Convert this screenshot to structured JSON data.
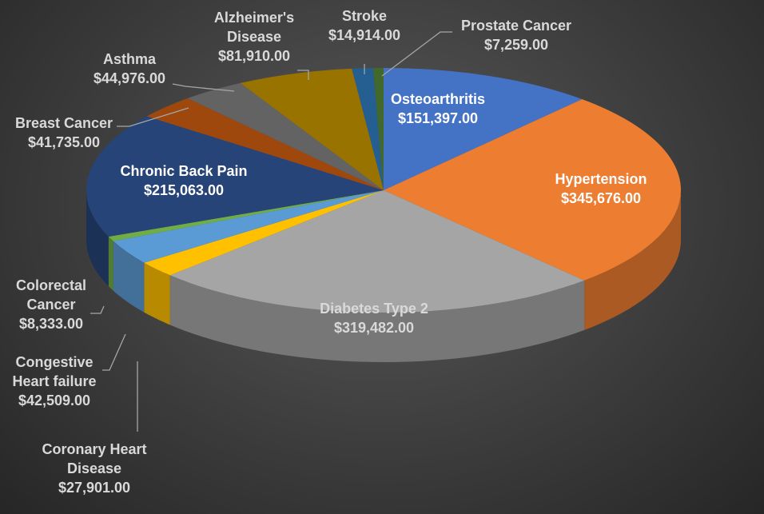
{
  "chart_data": {
    "type": "pie",
    "title": "",
    "categories": [
      "Osteoarthritis",
      "Hypertension",
      "Diabetes Type 2",
      "Coronary Heart Disease",
      "Congestive Heart failure",
      "Colorectal Cancer",
      "Chronic Back Pain",
      "Breast Cancer",
      "Asthma",
      "Alzheimer's Disease",
      "Stroke",
      "Prostate Cancer"
    ],
    "values": [
      151397,
      345676,
      319482,
      27901,
      42509,
      8333,
      215063,
      41735,
      44976,
      81910,
      14914,
      7259
    ],
    "value_labels": [
      "$151,397.00",
      "$345,676.00",
      "$319,482.00",
      "$27,901.00",
      "$42,509.00",
      "$8,333.00",
      "$215,063.00",
      "$41,735.00",
      "$44,976.00",
      "$81,910.00",
      "$14,914.00",
      "$7,259.00"
    ],
    "colors": [
      "#4472C4",
      "#ED7D31",
      "#A5A5A5",
      "#FFC000",
      "#5B9BD5",
      "#70AD47",
      "#264478",
      "#9E480E",
      "#636363",
      "#997300",
      "#255E91",
      "#43682B"
    ],
    "label_lines": [
      [
        "Osteoarthritis"
      ],
      [
        "Hypertension"
      ],
      [
        "Diabetes Type 2"
      ],
      [
        "Coronary Heart",
        "Disease"
      ],
      [
        "Congestive",
        "Heart failure"
      ],
      [
        "Colorectal",
        "Cancer"
      ],
      [
        "Chronic Back Pain"
      ],
      [
        "Breast Cancer"
      ],
      [
        "Asthma"
      ],
      [
        "Alzheimer's",
        "Disease"
      ],
      [
        "Stroke"
      ],
      [
        "Prostate Cancer"
      ]
    ],
    "style": "3d-pie",
    "legend": "none"
  }
}
